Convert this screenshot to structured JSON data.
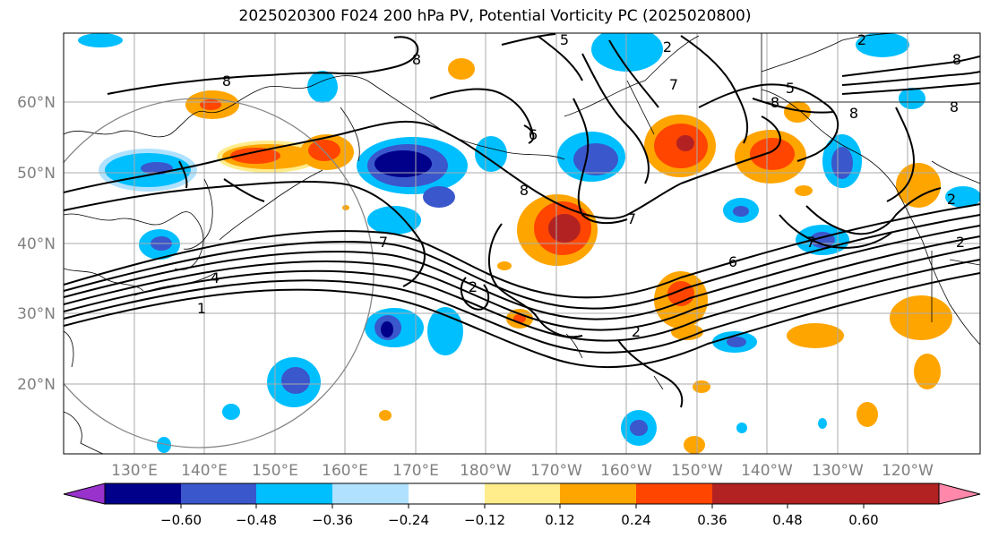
{
  "title": "2025020300 F024 200 hPa PV, Potential Vorticity PC (2025020800)",
  "lat_labels": [
    "60°N",
    "50°N",
    "40°N",
    "30°N",
    "20°N"
  ],
  "lon_labels": [
    "130°E",
    "140°E",
    "150°E",
    "160°E",
    "170°E",
    "180°W",
    "170°W",
    "160°W",
    "150°W",
    "140°W",
    "130°W",
    "120°W"
  ],
  "contour_labels": [
    "8",
    "5",
    "2",
    "2",
    "7",
    "8",
    "6",
    "8",
    "8",
    "7",
    "5",
    "8",
    "8",
    "2",
    "4",
    "1",
    "7",
    "2",
    "6",
    "2",
    "8",
    "7",
    "2"
  ],
  "colorbar": {
    "colors": [
      "#9932cc",
      "#00008b",
      "#3a57cc",
      "#00bfff",
      "#b0e2ff",
      "#ffffff",
      "#ffec8b",
      "#ffa500",
      "#ff4500",
      "#b22222",
      "#ff88aa"
    ],
    "tick_labels": [
      "−0.60",
      "−0.48",
      "−0.36",
      "−0.24",
      "−0.12",
      "0.12",
      "0.24",
      "0.36",
      "0.48",
      "0.60"
    ]
  },
  "styles": {
    "grid_color": "#aaaaaa",
    "frame_color": "#000000",
    "circle_color": "#888888",
    "coast_color": "#000000"
  }
}
